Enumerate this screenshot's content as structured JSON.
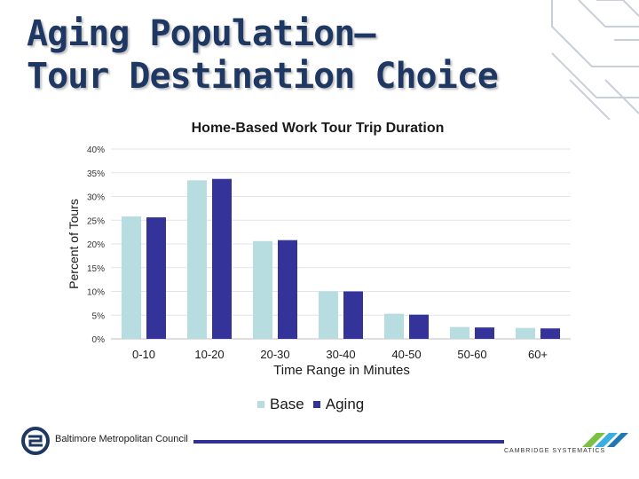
{
  "slide": {
    "title_line1": "Aging Population–",
    "title_line2": "Tour Destination Choice"
  },
  "chart_data": {
    "type": "bar",
    "title": "Home-Based Work Tour Trip Duration",
    "xlabel": "Time Range in Minutes",
    "ylabel": "Percent of Tours",
    "categories": [
      "0-10",
      "10-20",
      "20-30",
      "30-40",
      "40-50",
      "50-60",
      "60+"
    ],
    "yticks": [
      "0%",
      "5%",
      "10%",
      "15%",
      "20%",
      "25%",
      "30%",
      "35%",
      "40%"
    ],
    "ylim": [
      0,
      40
    ],
    "grid": true,
    "legend_position": "bottom",
    "series": [
      {
        "name": "Base",
        "color": "#b7dde1",
        "values": [
          25.8,
          33.4,
          20.6,
          10.0,
          5.3,
          2.5,
          2.3
        ]
      },
      {
        "name": "Aging",
        "color": "#333399",
        "values": [
          25.6,
          33.7,
          20.8,
          10.0,
          5.1,
          2.4,
          2.2
        ]
      }
    ]
  },
  "footer": {
    "left_org": "Baltimore Metropolitan Council",
    "right_org": "CAMBRIDGE SYSTEMATICS",
    "bar_color": "#2e3192"
  }
}
